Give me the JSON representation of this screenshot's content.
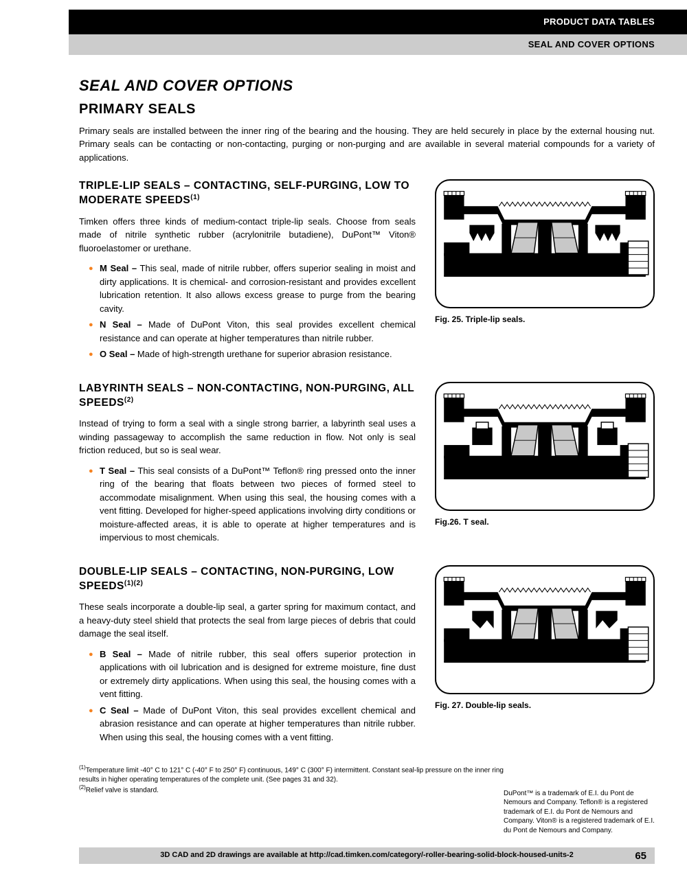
{
  "header": {
    "black_bar": "PRODUCT DATA TABLES",
    "gray_bar": "SEAL AND COVER OPTIONS"
  },
  "title": "SEAL AND COVER OPTIONS",
  "subtitle": "PRIMARY SEALS",
  "intro": "Primary seals are installed between the inner ring of the bearing and the housing. They are held securely in place by the external housing nut. Primary seals can be contacting or non-contacting, purging or non-purging and are available in several material compounds for a variety of applications.",
  "sections": [
    {
      "heading": "TRIPLE-LIP SEALS – CONTACTING, SELF-PURGING, LOW TO MODERATE SPEEDS",
      "heading_sup": "(1)",
      "body": "Timken offers three kinds of medium-contact triple-lip seals. Choose from seals made of nitrile synthetic rubber (acrylonitrile butadiene), DuPont™ Viton® fluoroelastomer or urethane.",
      "items": [
        {
          "label": "M Seal –",
          "text": " This seal, made of nitrile rubber, offers superior sealing in moist and dirty applications. It is chemical- and corrosion-resistant and provides excellent lubrication retention. It also allows excess grease to purge from the bearing cavity."
        },
        {
          "label": "N Seal –",
          "text": " Made of DuPont Viton, this seal provides excellent chemical resistance and can operate at higher temperatures than nitrile rubber."
        },
        {
          "label": "O Seal –",
          "text": " Made of high-strength urethane for superior abrasion resistance."
        }
      ],
      "fig_caption": "Fig. 25. Triple-lip seals."
    },
    {
      "heading": "LABYRINTH SEALS – NON-CONTACTING, NON-PURGING, ALL SPEEDS",
      "heading_sup": "(2)",
      "body": "Instead of trying to form a seal with a single strong barrier, a labyrinth seal uses a winding passageway to accomplish the same reduction in flow. Not only is seal friction reduced, but so is seal wear.",
      "items": [
        {
          "label": "T Seal –",
          "text": " This seal consists of a DuPont™ Teflon® ring pressed onto the inner ring of the bearing that floats between two pieces of formed steel to accommodate misalignment. When using this seal, the housing comes with a vent fitting. Developed for higher-speed applications involving dirty conditions or moisture-affected areas, it is able to operate at higher temperatures and is impervious to most chemicals."
        }
      ],
      "fig_caption": "Fig.26. T seal."
    },
    {
      "heading": "DOUBLE-LIP SEALS – CONTACTING, NON-PURGING, LOW SPEEDS",
      "heading_sup": "(1)(2)",
      "body": "These seals incorporate a double-lip seal, a garter spring for maximum contact, and a heavy-duty steel shield that protects the seal from large pieces of debris that could damage the seal itself.",
      "items": [
        {
          "label": "B Seal –",
          "text": " Made of nitrile rubber, this seal offers superior protection in applications with oil lubrication and is designed for extreme moisture, fine dust or extremely dirty applications. When using this seal, the housing comes with a vent fitting."
        },
        {
          "label": "C Seal –",
          "text": " Made of DuPont Viton, this seal provides excellent chemical and abrasion resistance and can operate at higher temperatures than nitrile rubber. When using this seal, the housing comes with a vent fitting."
        }
      ],
      "fig_caption": "Fig. 27. Double-lip seals."
    }
  ],
  "footnotes": [
    "Temperature limit -40° C to 121° C (-40° F to 250° F) continuous, 149° C (300° F) intermittent. Constant seal-lip pressure on the inner ring results in higher operating temperatures of the complete unit. (See pages 31 and 32).",
    "Relief valve is standard."
  ],
  "trademark": "DuPont™ is a trademark of E.I. du Pont de Nemours and Company. Teflon® is a registered trademark of E.I. du Pont de Nemours and Company. Viton® is a registered trademark of E.I. du Pont de Nemours and Company.",
  "footer": {
    "text": "3D CAD and 2D drawings are available at http://cad.timken.com/category/-roller-bearing-solid-block-housed-units-2",
    "page": "65"
  },
  "colors": {
    "bullet": "#f58220",
    "black": "#000000",
    "gray": "#cccccc"
  }
}
